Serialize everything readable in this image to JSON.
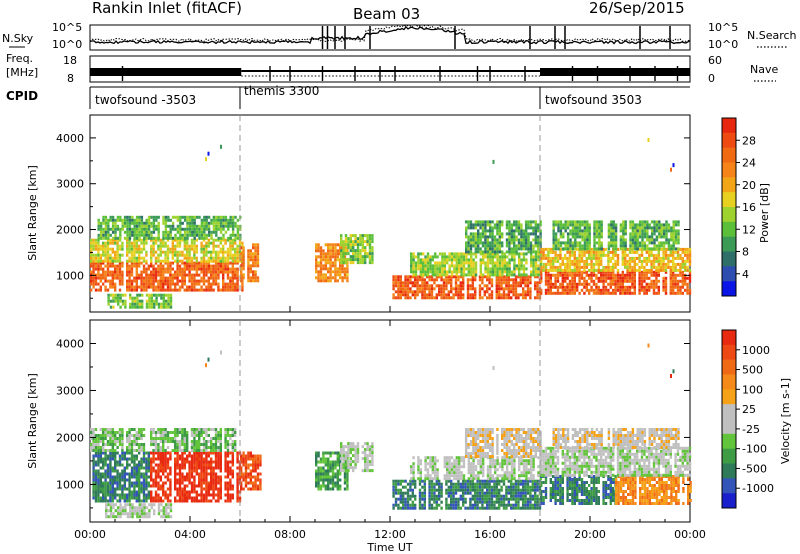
{
  "header": {
    "title": "Rankin Inlet (fitACF)",
    "beam": "Beam 03",
    "date": "26/Sep/2015"
  },
  "noise_panel": {
    "left_label": "N.Sky",
    "left_tick_top": "10^5",
    "left_tick_bottom": "10^0",
    "right_tick_top": "10^5",
    "right_tick_bottom": "10^0",
    "right_label": "N.Search"
  },
  "freq_panel": {
    "left_label_1": "Freq.",
    "left_label_2": "[MHz]",
    "left_tick_top": "18",
    "left_tick_bottom": "8",
    "right_tick_top": "60",
    "right_tick_bottom": "0",
    "right_label": "Nave"
  },
  "cpid_panel": {
    "label": "CPID",
    "modes": [
      {
        "label": "twofsound -3503",
        "start_hour": 0
      },
      {
        "label": "themis 3300",
        "start_hour": 6
      },
      {
        "label": "twofsound 3503",
        "start_hour": 18
      }
    ]
  },
  "chart_data": [
    {
      "type": "heatmap",
      "name": "power",
      "xlabel": "",
      "ylabel": "Slant Range [km]",
      "xlim": [
        0,
        24
      ],
      "ylim": [
        200,
        4500
      ],
      "yticks": [
        1000,
        2000,
        3000,
        4000
      ],
      "colorbar": {
        "label": "Power [dB]",
        "ticks": [
          "4",
          "8",
          "12",
          "16",
          "20",
          "24",
          "28"
        ],
        "range": [
          0,
          32
        ],
        "colors": [
          "#0a14e6",
          "#2e4db0",
          "#2f6f6a",
          "#3a9a56",
          "#5cbf3a",
          "#9ed22e",
          "#e8d020",
          "#f2a516",
          "#f58318",
          "#f06a14",
          "#ee4a12",
          "#e8280e"
        ]
      },
      "echo_regions": [
        {
          "t0": 0.0,
          "t1": 6.1,
          "r0": 650,
          "r1": 1300,
          "level": 27
        },
        {
          "t0": 0.0,
          "t1": 6.1,
          "r0": 1300,
          "r1": 1800,
          "level": 17
        },
        {
          "t0": 0.3,
          "t1": 6.0,
          "r0": 1800,
          "r1": 2300,
          "level": 11
        },
        {
          "t0": 0.6,
          "t1": 3.2,
          "r0": 300,
          "r1": 600,
          "level": 13
        },
        {
          "t0": 6.0,
          "t1": 6.8,
          "r0": 900,
          "r1": 1700,
          "level": 24
        },
        {
          "t0": 9.0,
          "t1": 10.3,
          "r0": 900,
          "r1": 1700,
          "level": 23
        },
        {
          "t0": 10.0,
          "t1": 11.3,
          "r0": 1300,
          "r1": 1900,
          "level": 13
        },
        {
          "t0": 12.0,
          "t1": 18.0,
          "r0": 500,
          "r1": 1000,
          "level": 28
        },
        {
          "t0": 12.8,
          "t1": 18.0,
          "r0": 1000,
          "r1": 1500,
          "level": 14
        },
        {
          "t0": 15.0,
          "t1": 18.0,
          "r0": 1500,
          "r1": 2200,
          "level": 10
        },
        {
          "t0": 18.0,
          "t1": 24.0,
          "r0": 600,
          "r1": 1100,
          "level": 28
        },
        {
          "t0": 18.0,
          "t1": 24.0,
          "r0": 1100,
          "r1": 1600,
          "level": 19
        },
        {
          "t0": 18.5,
          "t1": 23.5,
          "r0": 1600,
          "r1": 2200,
          "level": 11
        }
      ]
    },
    {
      "type": "heatmap",
      "name": "velocity",
      "xlabel": "Time UT",
      "ylabel": "Slant Range [km]",
      "xlim": [
        0,
        24
      ],
      "ylim": [
        200,
        4500
      ],
      "xticks": [
        "00:00",
        "04:00",
        "08:00",
        "12:00",
        "16:00",
        "20:00",
        "00:00"
      ],
      "yticks": [
        1000,
        2000,
        3000,
        4000
      ],
      "colorbar": {
        "label": "Velocity [m s-1]",
        "ticks": [
          "1000",
          "500",
          "100",
          "25",
          "-25",
          "-100",
          "-500",
          "-1000"
        ],
        "colors": [
          "#1a1fcc",
          "#3354b8",
          "#2f7a58",
          "#3e9c45",
          "#62c43a",
          "#c0c0c0",
          "#c0c0c0",
          "#f5a218",
          "#f58a1a",
          "#f06a16",
          "#ee4814",
          "#e82a10"
        ]
      },
      "echo_regions": [
        {
          "t0": 0.0,
          "t1": 2.4,
          "r0": 650,
          "r1": 1700,
          "level": 2
        },
        {
          "t0": 2.4,
          "t1": 6.0,
          "r0": 650,
          "r1": 1700,
          "level": 11
        },
        {
          "t0": 0.0,
          "t1": 6.0,
          "r0": 1700,
          "r1": 2200,
          "level": 4
        },
        {
          "t0": 0.6,
          "t1": 3.2,
          "r0": 300,
          "r1": 600,
          "level": 5
        },
        {
          "t0": 6.0,
          "t1": 6.8,
          "r0": 900,
          "r1": 1700,
          "level": 10
        },
        {
          "t0": 9.0,
          "t1": 10.3,
          "r0": 900,
          "r1": 1700,
          "level": 3
        },
        {
          "t0": 10.0,
          "t1": 11.3,
          "r0": 1300,
          "r1": 1900,
          "level": 5
        },
        {
          "t0": 12.0,
          "t1": 18.0,
          "r0": 500,
          "r1": 1100,
          "level": 2
        },
        {
          "t0": 12.8,
          "t1": 18.0,
          "r0": 1100,
          "r1": 1600,
          "level": 5
        },
        {
          "t0": 15.0,
          "t1": 18.0,
          "r0": 1600,
          "r1": 2200,
          "level": 6
        },
        {
          "t0": 18.0,
          "t1": 21.0,
          "r0": 600,
          "r1": 1200,
          "level": 2
        },
        {
          "t0": 21.0,
          "t1": 24.0,
          "r0": 600,
          "r1": 1200,
          "level": 8
        },
        {
          "t0": 18.0,
          "t1": 24.0,
          "r0": 1200,
          "r1": 1800,
          "level": 5
        },
        {
          "t0": 18.5,
          "t1": 23.5,
          "r0": 1800,
          "r1": 2200,
          "level": 6
        }
      ]
    }
  ]
}
